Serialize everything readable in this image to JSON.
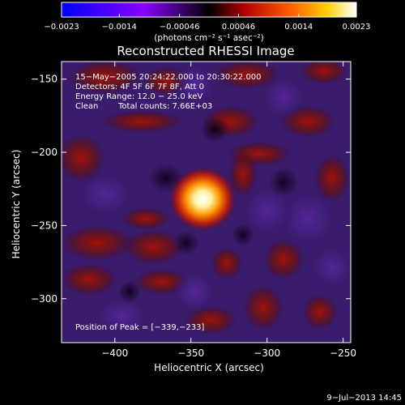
{
  "chart_data": {
    "type": "heatmap",
    "title": "Reconstructed RHESSI Image",
    "xlabel": "Heliocentric X (arcsec)",
    "ylabel": "Heliocentric Y (arcsec)",
    "xlim": [
      -435,
      -245
    ],
    "ylim": [
      -330,
      -138
    ],
    "xticks": [
      -400,
      -350,
      -300,
      -250
    ],
    "yticks": [
      -150,
      -200,
      -250,
      -300
    ],
    "xtick_labels": [
      "−400",
      "−350",
      "−300",
      "−250"
    ],
    "ytick_labels": [
      "−150",
      "−200",
      "−250",
      "−300"
    ],
    "colorbar": {
      "range": [
        -0.0023,
        0.0023
      ],
      "ticks": [
        -0.0023,
        -0.0014,
        -0.00046,
        0.00046,
        0.0014,
        0.0023
      ],
      "tick_labels": [
        "−0.0023",
        "−0.0014",
        "−0.00046",
        "0.00046",
        "0.0014",
        "0.0023"
      ],
      "unit_label": "(photons cm⁻² s⁻¹ asec⁻²)",
      "colors": [
        "#0000ff",
        "#8a00ff",
        "#000000",
        "#b00000",
        "#ff6000",
        "#ffd000",
        "#ffffff"
      ]
    },
    "peak": {
      "x": -339,
      "y": -233,
      "value": 0.0023
    },
    "background_level": -0.00035,
    "annotations": {
      "time_range": "15−May−2005 20:24:22.000 to 20:30:22.000",
      "detectors": "Detectors: 4F 5F 6F 7F 8F, Att 0",
      "energy": "Energy Range: 12.0 − 25.0 keV",
      "method": "Clean",
      "counts": "Total counts: 7.66E+03",
      "peak_label": "Position of Peak = [−339,−233]"
    },
    "grid": false
  },
  "footer": {
    "date": "9−Jul−2013 14:45"
  },
  "colors": {
    "background": "#000000",
    "text": "#ffffff"
  }
}
